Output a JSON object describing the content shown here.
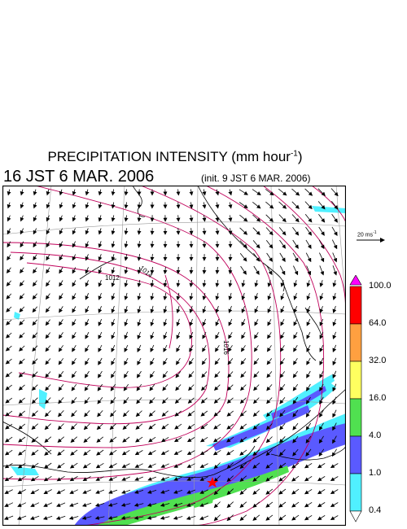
{
  "title": {
    "text": "PRECIPITATION INTENSITY (mm hour",
    "exponent": "-1",
    "close": ")"
  },
  "subtitle": "16 JST 6 MAR. 2006",
  "init_note": "(init. 9 JST 6 MAR. 2006)",
  "wind_reference": {
    "value": "20 ms",
    "exponent": "-1"
  },
  "legend": {
    "levels": [
      "100.0",
      "64.0",
      "32.0",
      "16.0",
      "4.0",
      "1.0",
      "0.4"
    ],
    "colors": [
      "#ff00ff",
      "#ff0000",
      "#ffa040",
      "#ffff60",
      "#50e050",
      "#5a5aff",
      "#50f0ff",
      "#ffffff"
    ]
  },
  "map": {
    "isobar_labels": [
      "1012",
      "1014",
      "1016"
    ],
    "isobar_color": "#c0005a",
    "marker_color": "#ff0000"
  }
}
